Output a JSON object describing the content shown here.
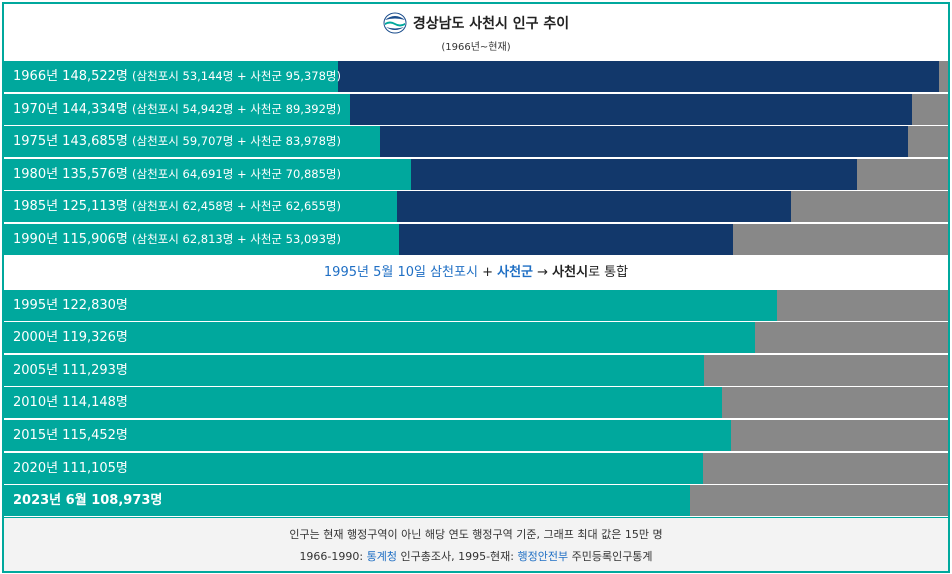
{
  "header": {
    "title": "경상남도 사천시 인구 추이",
    "subtitle": "(1966년~현재)",
    "logo_icon": "sacheon-city-emblem-icon"
  },
  "chart_data": {
    "type": "bar",
    "orientation": "horizontal",
    "stacked": true,
    "title": "경상남도 사천시 인구 추이",
    "subtitle": "(1966년~현재)",
    "xlim": [
      0,
      150000
    ],
    "unit": "명",
    "colors": {
      "samcheonpo": "#00a89d",
      "sacheon_gun": "#12386b",
      "sacheon_si": "#00a89d",
      "remainder": "#888888"
    },
    "pre_merger": [
      {
        "label": "1966년 148,522명",
        "detail": "(삼천포시 53,144명 + 사천군 95,378명)",
        "year": 1966,
        "total": 148522,
        "samcheonpo": 53144,
        "sacheon_gun": 95378
      },
      {
        "label": "1970년 144,334명",
        "detail": "(삼천포시 54,942명 + 사천군 89,392명)",
        "year": 1970,
        "total": 144334,
        "samcheonpo": 54942,
        "sacheon_gun": 89392
      },
      {
        "label": "1975년 143,685명",
        "detail": "(삼천포시 59,707명 + 사천군 83,978명)",
        "year": 1975,
        "total": 143685,
        "samcheonpo": 59707,
        "sacheon_gun": 83978
      },
      {
        "label": "1980년 135,576명",
        "detail": "(삼천포시 64,691명 + 사천군 70,885명)",
        "year": 1980,
        "total": 135576,
        "samcheonpo": 64691,
        "sacheon_gun": 70885
      },
      {
        "label": "1985년 125,113명",
        "detail": "(삼천포시 62,458명 + 사천군 62,655명)",
        "year": 1985,
        "total": 125113,
        "samcheonpo": 62458,
        "sacheon_gun": 62655
      },
      {
        "label": "1990년 115,906명",
        "detail": "(삼천포시 62,813명 + 사천군 53,093명)",
        "year": 1990,
        "total": 115906,
        "samcheonpo": 62813,
        "sacheon_gun": 53093
      }
    ],
    "merger_note": {
      "date": "1995년 5월 10일",
      "a": "삼천포시",
      "plus": " + ",
      "b": "사천군",
      "arrow": " → ",
      "c": "사천시",
      "suffix": "로 통합"
    },
    "post_merger": [
      {
        "label": "1995년 122,830명",
        "year": 1995,
        "total": 122830,
        "bold": false
      },
      {
        "label": "2000년 119,326명",
        "year": 2000,
        "total": 119326,
        "bold": false
      },
      {
        "label": "2005년 111,293명",
        "year": 2005,
        "total": 111293,
        "bold": false
      },
      {
        "label": "2010년 114,148명",
        "year": 2010,
        "total": 114148,
        "bold": false
      },
      {
        "label": "2015년 115,452명",
        "year": 2015,
        "total": 115452,
        "bold": false
      },
      {
        "label": "2020년 111,105명",
        "year": 2020,
        "total": 111105,
        "bold": false
      },
      {
        "label": "2023년 6월 108,973명",
        "year": 2023,
        "total": 108973,
        "bold": true
      }
    ]
  },
  "footer": {
    "line1": "인구는 현재 행정구역이 아닌 해당 연도 행정구역 기준, 그래프 최대 값은 15만 명",
    "line2_prefix": "1966-1990: ",
    "link1": "통계청",
    "line2_mid": " 인구총조사, 1995-현재: ",
    "link2": "행정안전부",
    "line2_suffix": " 주민등록인구통계"
  }
}
